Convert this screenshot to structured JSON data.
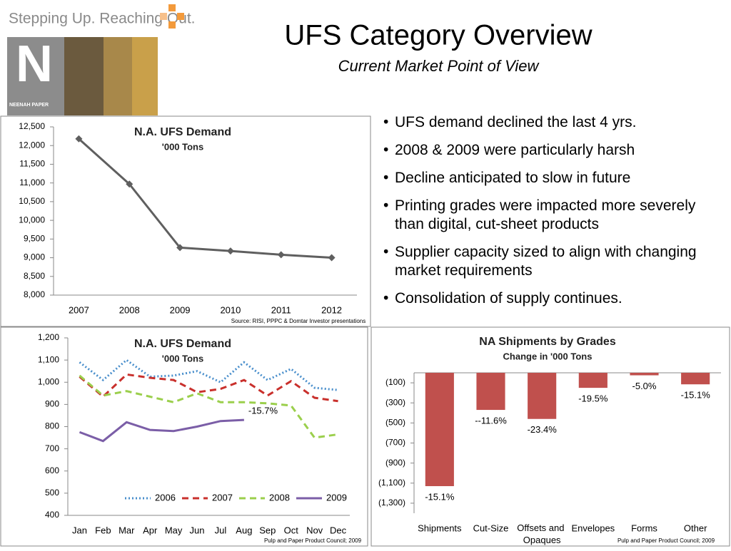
{
  "slide": {
    "title": "UFS Category Overview",
    "subtitle": "Current Market Point of View",
    "tagline": "Stepping Up. Reaching Out.",
    "logo_letter": "N",
    "logo_name": "NEENAH PAPER",
    "bullets": [
      "UFS demand declined the last 4 yrs.",
      "2008 & 2009 were particularly harsh",
      "Decline anticipated to slow in future",
      "Printing grades were impacted more severely than digital, cut-sheet products",
      "Supplier capacity sized to align with changing market requirements",
      "Consolidation of supply continues."
    ]
  },
  "chart_data": [
    {
      "type": "line",
      "title": "N.A. UFS Demand",
      "subtitle": "'000 Tons",
      "source": "Source: RISI, PPPC & Domtar Investor presentations",
      "categories": [
        "2007",
        "2008",
        "2009",
        "2010",
        "2011",
        "2012"
      ],
      "series": [
        {
          "name": "N.A. UFS Demand",
          "color": "#5f5f5f",
          "style": "solid",
          "marker": "diamond",
          "values": [
            12180,
            10970,
            9270,
            9180,
            9080,
            9000
          ]
        }
      ],
      "ylim": [
        8000,
        12500
      ],
      "yticks": [
        {
          "value": 8000,
          "label": "8,000"
        },
        {
          "value": 8500,
          "label": "8,500"
        },
        {
          "value": 9000,
          "label": "9,000"
        },
        {
          "value": 9500,
          "label": "9,500"
        },
        {
          "value": 10000,
          "label": "10,000"
        },
        {
          "value": 10500,
          "label": "10,500"
        },
        {
          "value": 11000,
          "label": "11,000"
        },
        {
          "value": 11500,
          "label": "11,500"
        },
        {
          "value": 12000,
          "label": "12,000"
        },
        {
          "value": 12500,
          "label": "12,500"
        }
      ],
      "grid": false,
      "legend": false
    },
    {
      "type": "line",
      "title": "N.A. UFS Demand",
      "subtitle": "'000 Tons",
      "source": "Pulp and Paper Product Council; 2009",
      "annotation": "-15.7%",
      "categories": [
        "Jan",
        "Feb",
        "Mar",
        "Apr",
        "May",
        "Jun",
        "Jul",
        "Aug",
        "Sep",
        "Oct",
        "Nov",
        "Dec"
      ],
      "series": [
        {
          "name": "2006",
          "color": "#4a8fcc",
          "style": "dotted",
          "values": [
            1090,
            1010,
            1100,
            1025,
            1030,
            1050,
            1000,
            1090,
            1010,
            1060,
            975,
            965
          ]
        },
        {
          "name": "2007",
          "color": "#c9302c",
          "style": "dashed",
          "values": [
            1025,
            935,
            1035,
            1020,
            1010,
            955,
            970,
            1010,
            940,
            1005,
            930,
            915
          ]
        },
        {
          "name": "2008",
          "color": "#9bcf4c",
          "style": "dashed",
          "values": [
            1030,
            940,
            960,
            935,
            910,
            950,
            910,
            910,
            905,
            895,
            750,
            765
          ]
        },
        {
          "name": "2009",
          "color": "#7b5ea7",
          "style": "solid",
          "values": [
            775,
            735,
            820,
            785,
            780,
            800,
            825,
            830,
            null,
            null,
            null,
            null
          ]
        }
      ],
      "ylim": [
        400,
        1200
      ],
      "yticks": [
        400,
        500,
        600,
        700,
        800,
        900,
        {
          "value": 1000,
          "label": "1,000"
        },
        {
          "value": 1100,
          "label": "1,100"
        },
        {
          "value": 1200,
          "label": "1,200"
        }
      ],
      "grid": false,
      "legend": "bottom"
    },
    {
      "type": "bar",
      "title": "NA Shipments by Grades",
      "subtitle": "Change in '000 Tons",
      "source": "Pulp and Paper Product Council; 2009",
      "categories": [
        "Shipments",
        "Cut-Size",
        "Offsets and Opaques",
        "Envelopes",
        "Forms",
        "Other"
      ],
      "series": [
        {
          "name": "NA Shipments by Grades",
          "color": "#c0504d",
          "values": [
            -1130,
            -370,
            -460,
            -150,
            -25,
            -115
          ]
        }
      ],
      "annotations": [
        "-15.1%",
        "--11.6%",
        "-23.4%",
        "-19.5%",
        "-5.0%",
        "-15.1%"
      ],
      "ylim": [
        -1400,
        0
      ],
      "yticks": [
        {
          "value": -100,
          "label": "(100)"
        },
        {
          "value": -300,
          "label": "(300)"
        },
        {
          "value": -500,
          "label": "(500)"
        },
        {
          "value": -700,
          "label": "(700)"
        },
        {
          "value": -900,
          "label": "(900)"
        },
        {
          "value": -1100,
          "label": "(1,100)"
        },
        {
          "value": -1300,
          "label": "(1,300)"
        }
      ],
      "grid": false,
      "legend": false
    }
  ]
}
